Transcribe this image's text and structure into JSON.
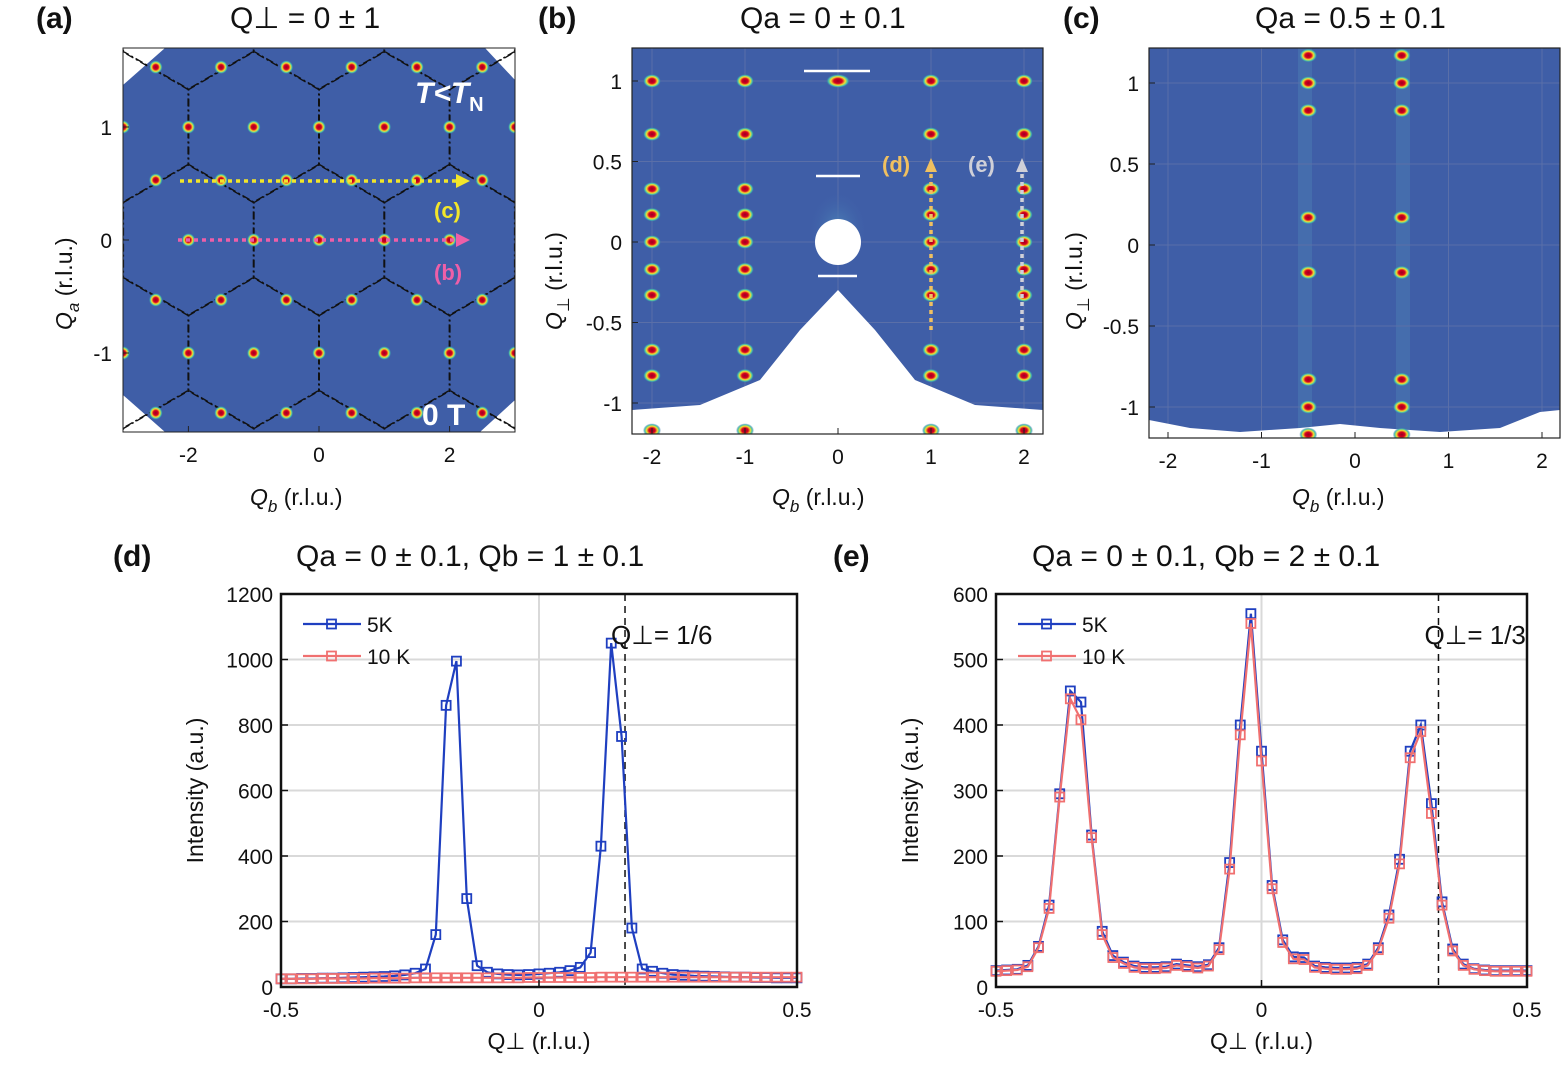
{
  "panels": {
    "a": {
      "letter": "(a)",
      "title": "Q⊥ = 0 ± 1",
      "xlabel": "Q",
      "xlabel_sub": "b",
      "xlabel_unit": " (r.l.u.)",
      "ylabel": "Q",
      "ylabel_sub": "a",
      "ylabel_unit": " (r.l.u.)",
      "xticks": [
        "-2",
        "0",
        "2"
      ],
      "yticks": [
        "1",
        "0",
        "-1"
      ],
      "temp_label": "T<T",
      "temp_sub": "N",
      "field_label": "0 T",
      "cut_labels": [
        "(c)",
        "(b)"
      ]
    },
    "b": {
      "letter": "(b)",
      "title": "Qa = 0 ± 0.1",
      "xlabel": "Q",
      "xlabel_sub": "b",
      "xlabel_unit": "  (r.l.u.)",
      "ylabel": "Q",
      "ylabel_sub": "⊥",
      "ylabel_unit": " (r.l.u.)",
      "xticks": [
        "-2",
        "-1",
        "0",
        "1",
        "2"
      ],
      "yticks": [
        "1",
        "0.5",
        "0",
        "-0.5",
        "-1"
      ],
      "cut_labels": [
        "(d)",
        "(e)"
      ]
    },
    "c": {
      "letter": "(c)",
      "title": "Qa = 0.5 ± 0.1",
      "xlabel": "Q",
      "xlabel_sub": "b",
      "xlabel_unit": "  (r.l.u.)",
      "ylabel": "Q",
      "ylabel_sub": "⊥",
      "ylabel_unit": " (r.l.u.)",
      "xticks": [
        "-2",
        "-1",
        "0",
        "1",
        "2"
      ],
      "yticks": [
        "1",
        "0.5",
        "0",
        "-0.5",
        "-1"
      ]
    },
    "d": {
      "letter": "(d)"
    },
    "e": {
      "letter": "(e)"
    }
  },
  "colors": {
    "map_bg": "#3f5ea7",
    "peak": "#b00020",
    "blue_series": "#1f3fc0",
    "red_series": "#f07070",
    "yellow_arrow": "#f2e62a",
    "pink_arrow": "#ee5fa8",
    "orange_label": "#f0c060",
    "gray_label": "#d0d0d8"
  },
  "chart_data": [
    {
      "type": "line",
      "panel": "d",
      "title": "Qa = 0 ± 0.1, Qb = 1 ± 0.1",
      "xlabel": "Q⊥ (r.l.u.)",
      "ylabel": "Intensity (a.u.)",
      "xlim": [
        -0.5,
        0.5
      ],
      "ylim": [
        0,
        1200
      ],
      "xticks": [
        -0.5,
        0,
        0.5
      ],
      "xtick_labels": [
        "-0.5",
        "0",
        "0.5"
      ],
      "yticks": [
        0,
        200,
        400,
        600,
        800,
        1000,
        1200
      ],
      "grid": true,
      "legend_position": "top-left",
      "annotation": "Q⊥= 1/6",
      "vline": 0.1667,
      "series": [
        {
          "name": "5K",
          "color": "blue",
          "x": [
            -0.5,
            -0.48,
            -0.46,
            -0.44,
            -0.42,
            -0.4,
            -0.38,
            -0.36,
            -0.34,
            -0.32,
            -0.3,
            -0.28,
            -0.26,
            -0.24,
            -0.22,
            -0.2,
            -0.18,
            -0.16,
            -0.14,
            -0.12,
            -0.1,
            -0.08,
            -0.06,
            -0.04,
            -0.02,
            0,
            0.02,
            0.04,
            0.06,
            0.08,
            0.1,
            0.12,
            0.14,
            0.16,
            0.18,
            0.2,
            0.22,
            0.24,
            0.26,
            0.28,
            0.3,
            0.32,
            0.34,
            0.36,
            0.38,
            0.4,
            0.42,
            0.44,
            0.46,
            0.48,
            0.5
          ],
          "values": [
            25,
            25,
            26,
            26,
            27,
            27,
            28,
            29,
            30,
            31,
            32,
            34,
            37,
            42,
            55,
            160,
            860,
            995,
            270,
            65,
            45,
            40,
            38,
            37,
            38,
            40,
            42,
            45,
            50,
            60,
            105,
            430,
            1050,
            765,
            180,
            55,
            48,
            42,
            38,
            36,
            34,
            33,
            32,
            31,
            30,
            30,
            29,
            29,
            28,
            28,
            28
          ]
        },
        {
          "name": "10 K",
          "color": "red",
          "x": [
            -0.5,
            -0.48,
            -0.46,
            -0.44,
            -0.42,
            -0.4,
            -0.38,
            -0.36,
            -0.34,
            -0.32,
            -0.3,
            -0.28,
            -0.26,
            -0.24,
            -0.22,
            -0.2,
            -0.18,
            -0.16,
            -0.14,
            -0.12,
            -0.1,
            -0.08,
            -0.06,
            -0.04,
            -0.02,
            0,
            0.02,
            0.04,
            0.06,
            0.08,
            0.1,
            0.12,
            0.14,
            0.16,
            0.18,
            0.2,
            0.22,
            0.24,
            0.26,
            0.28,
            0.3,
            0.32,
            0.34,
            0.36,
            0.38,
            0.4,
            0.42,
            0.44,
            0.46,
            0.48,
            0.5
          ],
          "values": [
            25,
            25,
            25,
            25,
            26,
            26,
            26,
            26,
            26,
            27,
            27,
            27,
            27,
            28,
            28,
            28,
            28,
            28,
            28,
            28,
            28,
            28,
            28,
            28,
            29,
            29,
            29,
            29,
            29,
            29,
            29,
            30,
            30,
            30,
            30,
            30,
            30,
            30,
            30,
            30,
            30,
            30,
            30,
            30,
            30,
            30,
            30,
            30,
            30,
            30,
            30
          ]
        }
      ]
    },
    {
      "type": "line",
      "panel": "e",
      "title": "Qa = 0 ± 0.1, Qb = 2 ± 0.1",
      "xlabel": "Q⊥ (r.l.u.)",
      "ylabel": "Intensity (a.u.)",
      "xlim": [
        -0.5,
        0.5
      ],
      "ylim": [
        0,
        600
      ],
      "xticks": [
        -0.5,
        0,
        0.5
      ],
      "xtick_labels": [
        "-0.5",
        "0",
        "0.5"
      ],
      "yticks": [
        0,
        100,
        200,
        300,
        400,
        500,
        600
      ],
      "grid": true,
      "legend_position": "top-left",
      "annotation": "Q⊥= 1/3",
      "vline": 0.3333,
      "series": [
        {
          "name": "5K",
          "color": "blue",
          "x": [
            -0.5,
            -0.48,
            -0.46,
            -0.44,
            -0.42,
            -0.4,
            -0.38,
            -0.36,
            -0.34,
            -0.32,
            -0.3,
            -0.28,
            -0.26,
            -0.24,
            -0.22,
            -0.2,
            -0.18,
            -0.16,
            -0.14,
            -0.12,
            -0.1,
            -0.08,
            -0.06,
            -0.04,
            -0.02,
            0,
            0.02,
            0.04,
            0.06,
            0.08,
            0.1,
            0.12,
            0.14,
            0.16,
            0.18,
            0.2,
            0.22,
            0.24,
            0.26,
            0.28,
            0.3,
            0.32,
            0.34,
            0.36,
            0.38,
            0.4,
            0.42,
            0.44,
            0.46,
            0.48,
            0.5
          ],
          "values": [
            25,
            26,
            27,
            33,
            62,
            125,
            295,
            452,
            435,
            232,
            85,
            48,
            38,
            32,
            30,
            30,
            31,
            35,
            33,
            31,
            34,
            60,
            190,
            400,
            570,
            360,
            155,
            72,
            46,
            45,
            32,
            30,
            29,
            29,
            30,
            35,
            60,
            110,
            195,
            360,
            400,
            280,
            130,
            58,
            35,
            28,
            26,
            25,
            25,
            25,
            25
          ]
        },
        {
          "name": "10 K",
          "color": "red",
          "x": [
            -0.5,
            -0.48,
            -0.46,
            -0.44,
            -0.42,
            -0.4,
            -0.38,
            -0.36,
            -0.34,
            -0.32,
            -0.3,
            -0.28,
            -0.26,
            -0.24,
            -0.22,
            -0.2,
            -0.18,
            -0.16,
            -0.14,
            -0.12,
            -0.1,
            -0.08,
            -0.06,
            -0.04,
            -0.02,
            0,
            0.02,
            0.04,
            0.06,
            0.08,
            0.1,
            0.12,
            0.14,
            0.16,
            0.18,
            0.2,
            0.22,
            0.24,
            0.26,
            0.28,
            0.3,
            0.32,
            0.34,
            0.36,
            0.38,
            0.4,
            0.42,
            0.44,
            0.46,
            0.48,
            0.5
          ],
          "values": [
            24,
            25,
            26,
            31,
            60,
            120,
            290,
            440,
            408,
            228,
            80,
            45,
            36,
            30,
            28,
            28,
            29,
            33,
            31,
            29,
            32,
            57,
            180,
            385,
            555,
            345,
            150,
            68,
            43,
            42,
            30,
            28,
            27,
            27,
            28,
            33,
            57,
            105,
            188,
            350,
            390,
            265,
            125,
            55,
            33,
            27,
            25,
            24,
            24,
            24,
            24
          ]
        }
      ]
    }
  ]
}
